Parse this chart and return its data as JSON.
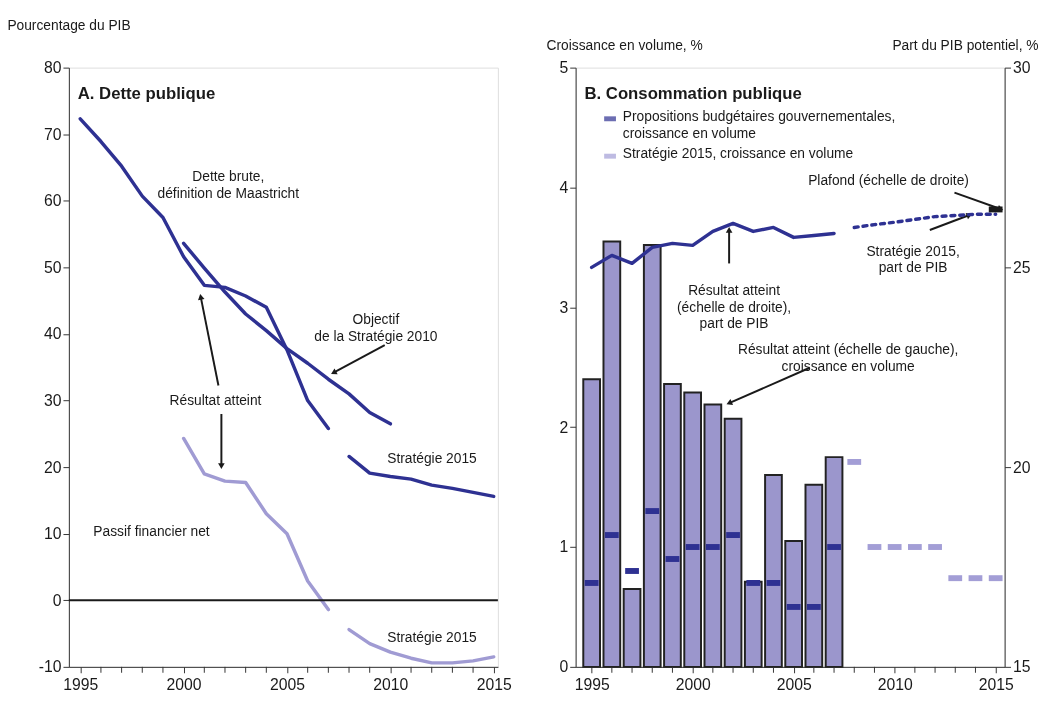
{
  "chart_data": [
    {
      "type": "line",
      "title": "A. Dette publique",
      "ylabel": "Pourcentage du PIB",
      "xlim": [
        1994.45,
        2015.2
      ],
      "xticks": [
        1995,
        {
          "value": 1996,
          "label": null
        },
        {
          "value": 1997,
          "label": null
        },
        {
          "value": 1998,
          "label": null
        },
        {
          "value": 1999,
          "label": null
        },
        2000,
        {
          "value": 2001,
          "label": null
        },
        {
          "value": 2002,
          "label": null
        },
        {
          "value": 2003,
          "label": null
        },
        {
          "value": 2004,
          "label": null
        },
        2005,
        {
          "value": 2006,
          "label": null
        },
        {
          "value": 2007,
          "label": null
        },
        {
          "value": 2008,
          "label": null
        },
        {
          "value": 2009,
          "label": null
        },
        2010,
        {
          "value": 2011,
          "label": null
        },
        {
          "value": 2012,
          "label": null
        },
        {
          "value": 2013,
          "label": null
        },
        {
          "value": 2014,
          "label": null
        },
        2015
      ],
      "ylim": [
        -10,
        80
      ],
      "yticks": [
        -10,
        0,
        10,
        20,
        30,
        40,
        50,
        60,
        70,
        80
      ],
      "ref_lines": [
        {
          "axis": "y",
          "value": 0,
          "color": "#1a1a1a"
        }
      ],
      "series": [
        {
          "color": "#2e3192",
          "x": [
            1995,
            1996,
            1997,
            1998,
            1999,
            2000,
            2001,
            2002,
            2003,
            2004,
            2005,
            2006,
            2007
          ],
          "values": [
            72.3,
            68.9,
            65.2,
            60.7,
            57.5,
            51.6,
            47.3,
            47.0,
            45.7,
            44.0,
            37.6,
            30.0,
            25.8
          ]
        },
        {
          "color": "#2e3192",
          "x": [
            2008,
            2009,
            2010,
            2011,
            2012,
            2013,
            2014,
            2015
          ],
          "values": [
            21.6,
            19.1,
            18.6,
            18.2,
            17.3,
            16.8,
            16.2,
            15.6
          ]
        },
        {
          "color": "#2e3192",
          "x": [
            2000,
            2001,
            2002,
            2003,
            2004,
            2005,
            2006,
            2007,
            2008,
            2009,
            2010
          ],
          "values": [
            53.6,
            49.9,
            46.3,
            43.0,
            40.5,
            37.8,
            35.6,
            33.2,
            31.0,
            28.2,
            26.5
          ]
        },
        {
          "color": "#a09bd3",
          "x": [
            2000,
            2001,
            2002,
            2003,
            2004,
            2005,
            2006,
            2007
          ],
          "values": [
            24.3,
            19.0,
            17.9,
            17.7,
            13.0,
            10.0,
            2.9,
            -1.4
          ]
        },
        {
          "color": "#a09bd3",
          "x": [
            2008,
            2009,
            2010,
            2011,
            2012,
            2013,
            2014,
            2015
          ],
          "values": [
            -4.4,
            -6.5,
            -7.8,
            -8.7,
            -9.4,
            -9.4,
            -9.1,
            -8.5
          ]
        }
      ],
      "annotations": [
        "Dette brute,\ndéfinition de Maastricht",
        "Objectif\nde la Stratégie 2010",
        "Résultat atteint",
        "Stratégie 2015",
        "Passif financier net",
        "Stratégie 2015"
      ]
    },
    {
      "type": "bar",
      "title": "B. Consommation publique",
      "ylabel": "Croissance en volume, %",
      "y2label": "Part du PIB potentiel, %",
      "xlim": [
        1994.45,
        2015.2
      ],
      "xticks": [
        1995,
        {
          "value": 1996,
          "label": null
        },
        {
          "value": 1997,
          "label": null
        },
        {
          "value": 1998,
          "label": null
        },
        {
          "value": 1999,
          "label": null
        },
        2000,
        {
          "value": 2001,
          "label": null
        },
        {
          "value": 2002,
          "label": null
        },
        {
          "value": 2003,
          "label": null
        },
        {
          "value": 2004,
          "label": null
        },
        2005,
        {
          "value": 2006,
          "label": null
        },
        {
          "value": 2007,
          "label": null
        },
        {
          "value": 2008,
          "label": null
        },
        {
          "value": 2009,
          "label": null
        },
        2010,
        {
          "value": 2011,
          "label": null
        },
        {
          "value": 2012,
          "label": null
        },
        {
          "value": 2013,
          "label": null
        },
        {
          "value": 2014,
          "label": null
        },
        2015
      ],
      "ylim": [
        0,
        5
      ],
      "yticks": [
        0,
        1,
        2,
        3,
        4,
        5
      ],
      "y2lim": [
        15,
        30
      ],
      "y2ticks": [
        15,
        20,
        25,
        30
      ],
      "legend": "top left",
      "series": [
        {
          "type": "bar",
          "color": "#9b96cc",
          "x": [
            1995,
            1996,
            1997,
            1998,
            1999,
            2000,
            2001,
            2002,
            2003,
            2004,
            2005,
            2006,
            2007
          ],
          "values": [
            2.4,
            3.55,
            0.65,
            3.52,
            2.36,
            2.29,
            2.19,
            2.07,
            0.71,
            1.6,
            1.05,
            1.52,
            1.75
          ]
        },
        {
          "type": "scatter",
          "name": "Propositions budgétaires gouvernementales,\ncroissance en volume",
          "color": "#2e3192",
          "x": [
            1995,
            1996,
            1997,
            1998,
            1999,
            2000,
            2001,
            2002,
            2003,
            2004,
            2005,
            2006,
            2007
          ],
          "values": [
            0.7,
            1.1,
            0.8,
            1.3,
            0.9,
            1.0,
            1.0,
            1.1,
            0.7,
            0.7,
            0.5,
            0.5,
            1.0
          ]
        },
        {
          "type": "scatter",
          "name": "Stratégie 2015, croissance en volume",
          "color": "#a39ed6",
          "x": [
            2008,
            2009,
            2010,
            2011,
            2012,
            2013,
            2014,
            2015
          ],
          "values": [
            1.71,
            1.0,
            1.0,
            1.0,
            1.0,
            0.74,
            0.74,
            0.74
          ]
        },
        {
          "type": "line",
          "axis": "y2",
          "color": "#2e3192",
          "x": [
            1995,
            1996,
            1997,
            1998,
            1999,
            2000,
            2001,
            2002,
            2003,
            2004,
            2005,
            2006,
            2007
          ],
          "values": [
            25.0,
            25.3,
            25.1,
            25.5,
            25.6,
            25.55,
            25.9,
            26.1,
            25.9,
            26.0,
            25.75,
            25.8,
            25.85
          ]
        },
        {
          "type": "line",
          "axis": "y2",
          "line_style": "dotted",
          "color": "#2e3192",
          "x": [
            2008,
            2009,
            2010,
            2011,
            2012,
            2013,
            2014,
            2015
          ],
          "values": [
            26.0,
            26.07,
            26.13,
            26.2,
            26.27,
            26.3,
            26.33,
            26.33
          ]
        },
        {
          "type": "scatter",
          "axis": "y2",
          "color": "#1a1a1a",
          "x": [
            2015
          ],
          "values": [
            26.45
          ]
        }
      ],
      "annotations": [
        {
          "text": "Plafond (échelle de droite)",
          "x": 2015,
          "y": 3.82
        },
        {
          "text": "Stratégie 2015,\npart de PIB",
          "x": 2013.5,
          "y": 3.77
        },
        "Résultat atteint\n(échelle de droite),\npart de PIB",
        "Résultat atteint (échelle de gauche),\ncroissance en volume"
      ]
    }
  ]
}
